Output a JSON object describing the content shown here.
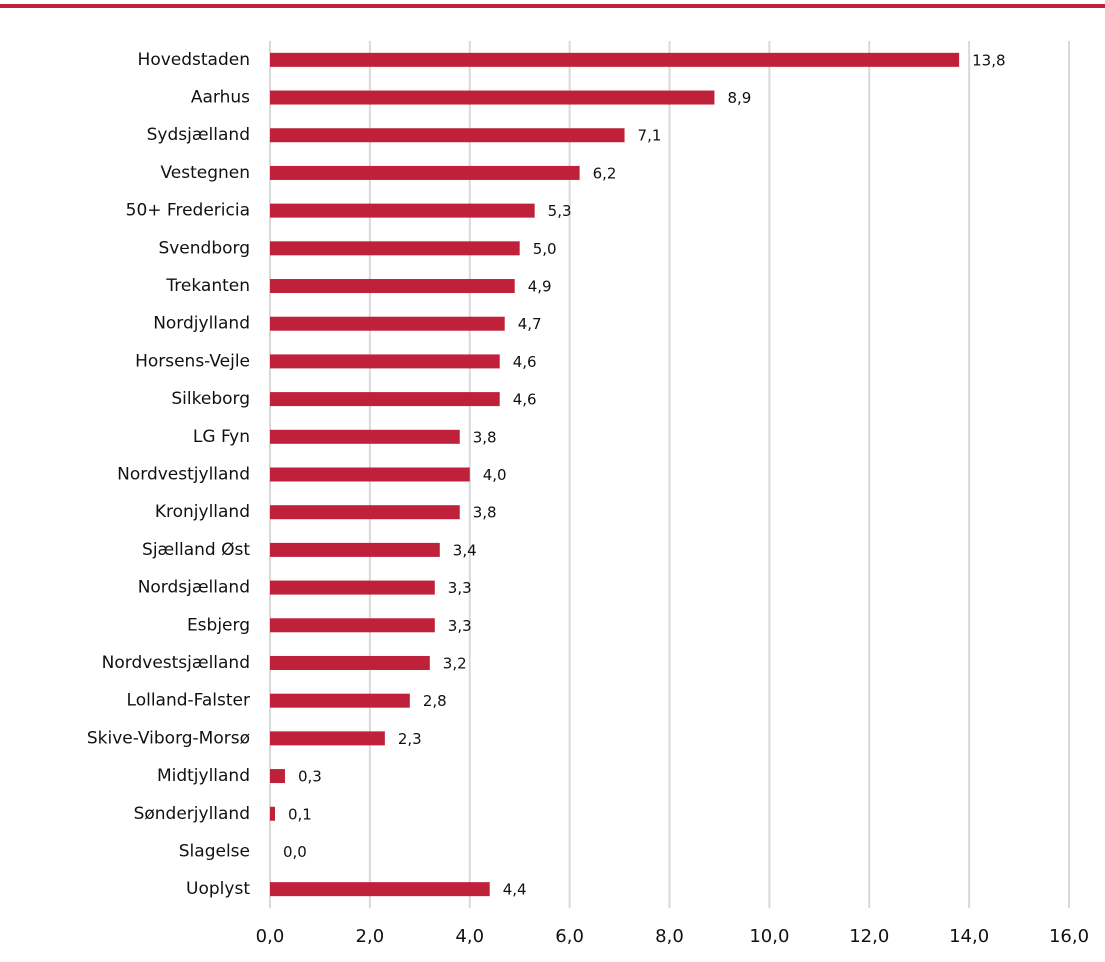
{
  "chart_data": {
    "type": "bar",
    "orientation": "horizontal",
    "categories": [
      "Hovedstaden",
      "Aarhus",
      "Sydsjælland",
      "Vestegnen",
      "50+ Fredericia",
      "Svendborg",
      "Trekanten",
      "Nordjylland",
      "Horsens-Vejle",
      "Silkeborg",
      "LG Fyn",
      "Nordvestjylland",
      "Kronjylland",
      "Sjælland Øst",
      "Nordsjælland",
      "Esbjerg",
      "Nordvestsjælland",
      "Lolland-Falster",
      "Skive-Viborg-Morsø",
      "Midtjylland",
      "Sønderjylland",
      "Slagelse",
      "Uoplyst"
    ],
    "values": [
      13.8,
      8.9,
      7.1,
      6.2,
      5.3,
      5.0,
      4.9,
      4.7,
      4.6,
      4.6,
      3.8,
      4.0,
      3.8,
      3.4,
      3.3,
      3.3,
      3.2,
      2.8,
      2.3,
      0.3,
      0.1,
      0.0,
      4.4
    ],
    "value_labels": [
      "13,8",
      "8,9",
      "7,1",
      "6,2",
      "5,3",
      "5,0",
      "4,9",
      "4,7",
      "4,6",
      "4,6",
      "3,8",
      "4,0",
      "3,8",
      "3,4",
      "3,3",
      "3,3",
      "3,2",
      "2,8",
      "2,3",
      "0,3",
      "0,1",
      "0,0",
      "4,4"
    ],
    "color": "#c0213a",
    "xlim": [
      0,
      16
    ],
    "xticks": [
      {
        "value": 0,
        "label": "0,0"
      },
      {
        "value": 2,
        "label": "2,0"
      },
      {
        "value": 4,
        "label": "4,0"
      },
      {
        "value": 6,
        "label": "6,0"
      },
      {
        "value": 8,
        "label": "8,0"
      },
      {
        "value": 10,
        "label": "10,0"
      },
      {
        "value": 12,
        "label": "12,0"
      },
      {
        "value": 14,
        "label": "14,0"
      },
      {
        "value": 16,
        "label": "16,0"
      }
    ],
    "grid": true
  }
}
